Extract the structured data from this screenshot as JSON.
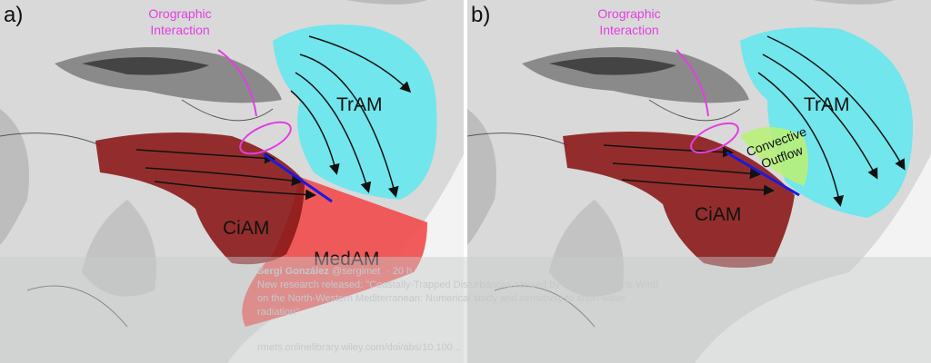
{
  "panels": [
    {
      "label": "a)",
      "annotation": [
        "Orographic",
        "Interaction"
      ],
      "regions": [
        "TrAM",
        "CiAM",
        "MedAM"
      ]
    },
    {
      "label": "b)",
      "annotation": [
        "Orographic",
        "Interaction"
      ],
      "regions": [
        "TrAM",
        "CiAM"
      ],
      "outflow": [
        "Convective",
        "Outflow"
      ]
    }
  ],
  "tweet": {
    "name": "Sergi González",
    "handle": "@sergimet",
    "time": "· 20 h",
    "text": [
      "New research released: \"Coastally-Trapped Disturbances caused by the Tramontane Wind",
      "on the North-Western Mediterranean: Numerical study and sensitivity to short-wave",
      "radiation\""
    ],
    "link": "rmets.onlinelibrary.wiley.com/doi/abs/10.100..."
  }
}
